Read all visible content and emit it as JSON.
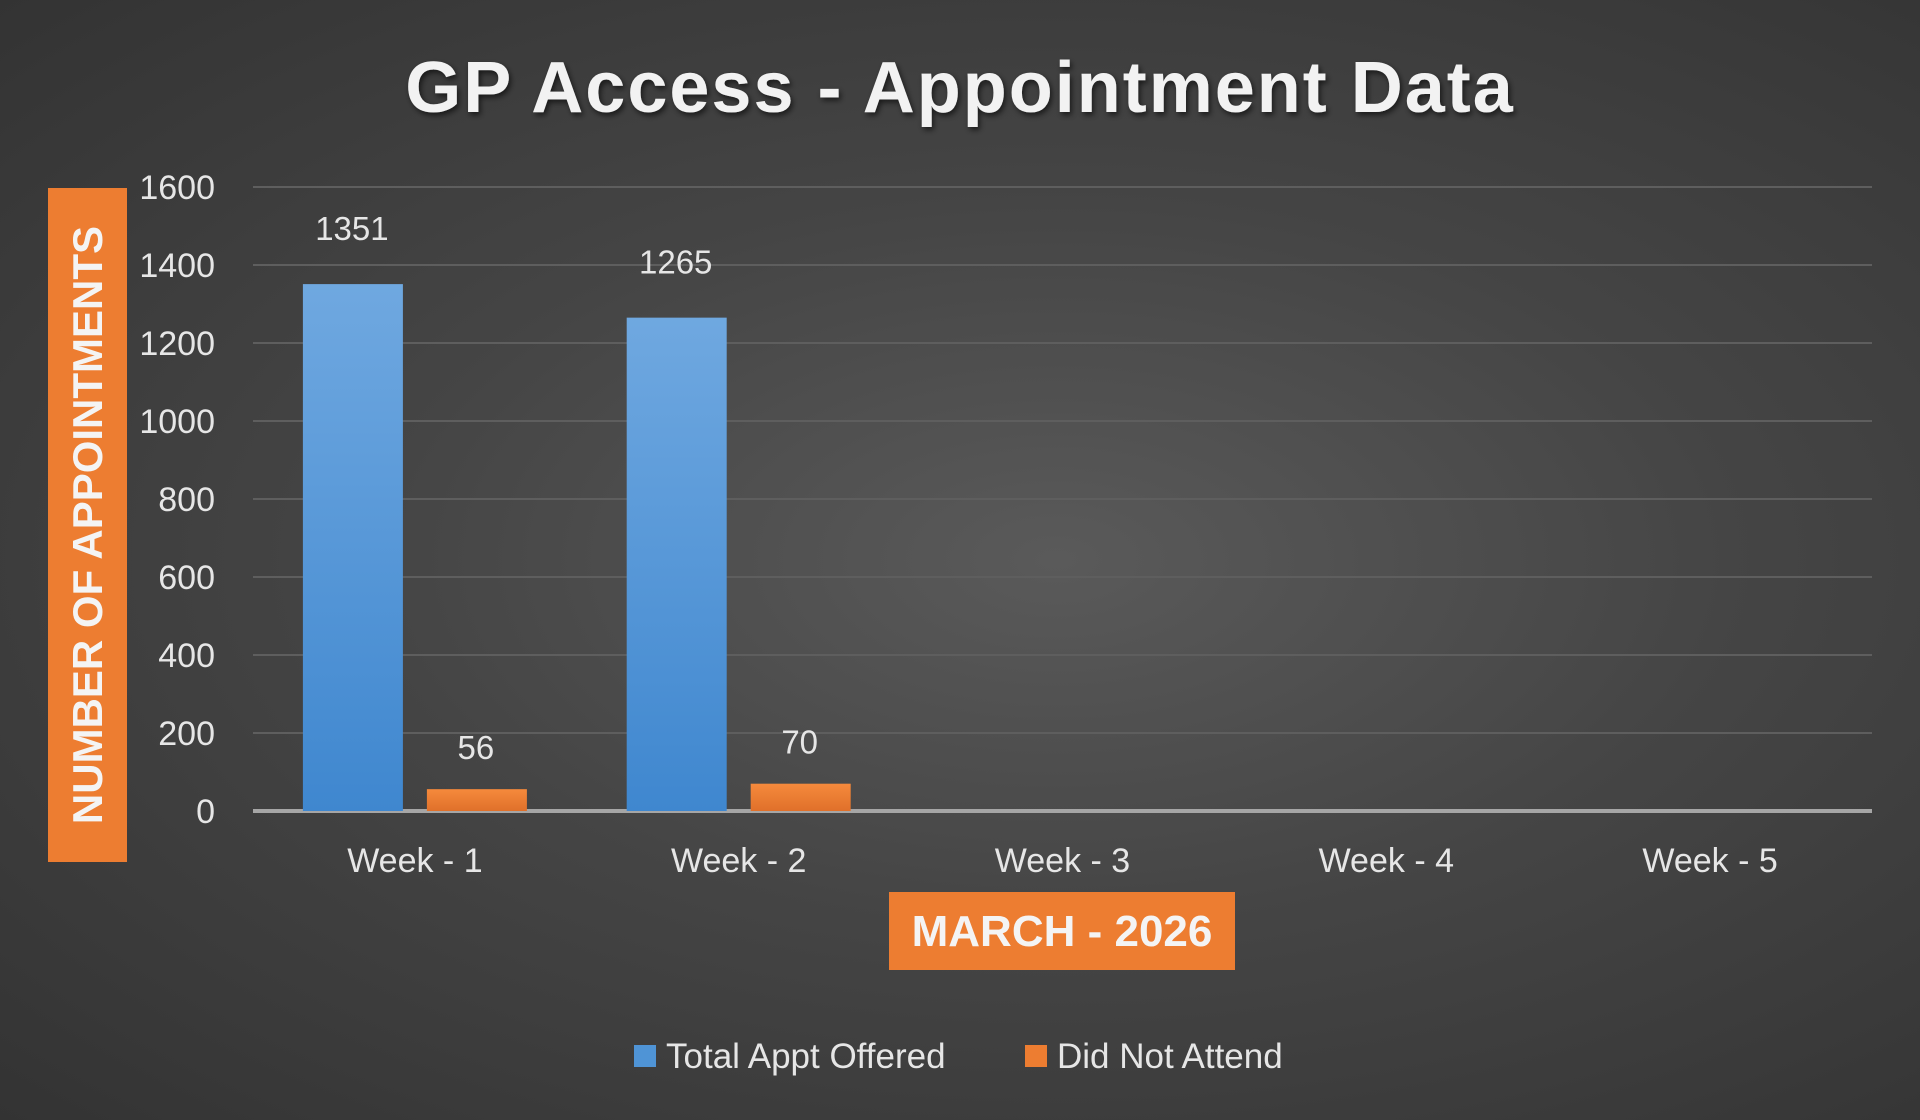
{
  "chart_data": {
    "type": "bar",
    "title": "GP Access - Appointment Data",
    "xlabel": "MARCH - 2026",
    "ylabel": "NUMBER OF APPOINTMENTS",
    "categories": [
      "Week - 1",
      "Week - 2",
      "Week - 3",
      "Week - 4",
      "Week - 5"
    ],
    "series": [
      {
        "name": "Total Appt Offered",
        "values": [
          1351,
          1265,
          null,
          null,
          null
        ],
        "color": "#4f94d6"
      },
      {
        "name": "Did Not Attend",
        "values": [
          56,
          70,
          null,
          null,
          null
        ],
        "color": "#ed7d31"
      }
    ],
    "ylim": [
      0,
      1600
    ],
    "yticks": [
      0,
      200,
      400,
      600,
      800,
      1000,
      1200,
      1400,
      1600
    ],
    "grid": true,
    "legend_position": "bottom",
    "axis_title_color": "#ed7d31"
  }
}
